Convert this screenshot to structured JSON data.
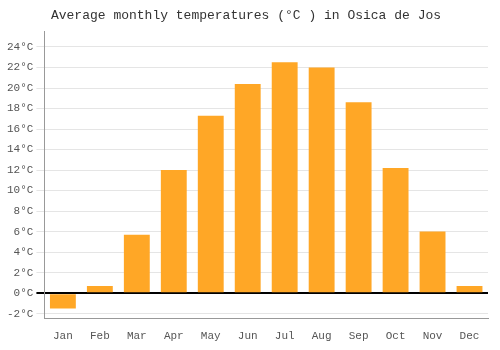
{
  "chart_data": {
    "type": "bar",
    "title": "Average monthly temperatures (°C ) in Osica de Jos",
    "categories": [
      "Jan",
      "Feb",
      "Mar",
      "Apr",
      "May",
      "Jun",
      "Jul",
      "Aug",
      "Sep",
      "Oct",
      "Nov",
      "Dec"
    ],
    "values": [
      -1.5,
      0.7,
      5.7,
      12.0,
      17.3,
      20.4,
      22.5,
      22.0,
      18.6,
      12.2,
      6.0,
      0.7
    ],
    "color": "#FFA726",
    "ylim": [
      -2.5,
      25.5
    ],
    "yticks": [
      {
        "value": -2,
        "label": "-2°C"
      },
      {
        "value": 0,
        "label": "0°C"
      },
      {
        "value": 2,
        "label": "2°C"
      },
      {
        "value": 4,
        "label": "4°C"
      },
      {
        "value": 6,
        "label": "6°C"
      },
      {
        "value": 8,
        "label": "8°C"
      },
      {
        "value": 10,
        "label": "10°C"
      },
      {
        "value": 12,
        "label": "12°C"
      },
      {
        "value": 14,
        "label": "14°C"
      },
      {
        "value": 16,
        "label": "16°C"
      },
      {
        "value": 18,
        "label": "18°C"
      },
      {
        "value": 20,
        "label": "20°C"
      },
      {
        "value": 22,
        "label": "22°C"
      },
      {
        "value": 24,
        "label": "24°C"
      }
    ],
    "grid": true
  }
}
